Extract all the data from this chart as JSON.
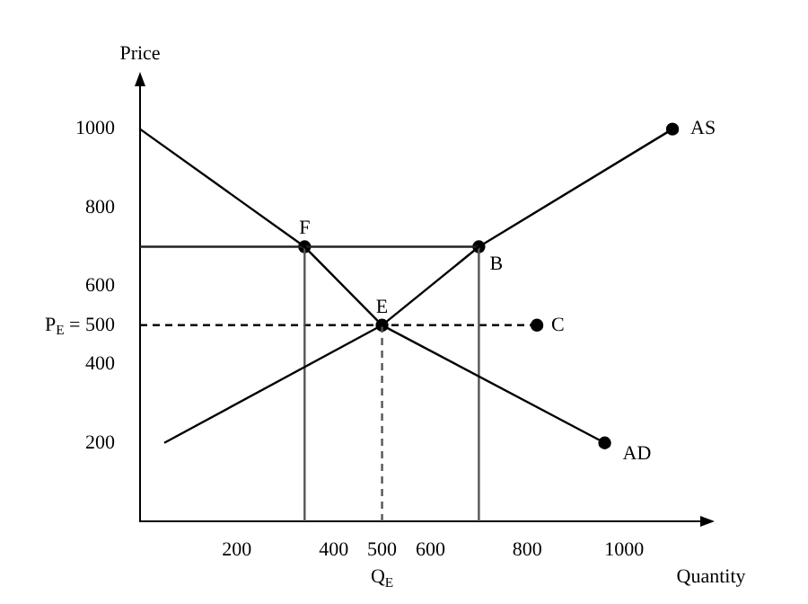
{
  "chart_data": {
    "type": "line",
    "xlabel": "Quantity",
    "ylabel": "Price",
    "xlim": [
      0,
      1150
    ],
    "ylim": [
      0,
      1100
    ],
    "xticks": [
      200,
      400,
      {
        "value": 500,
        "label": "500\nQ$_{E}$"
      },
      600,
      800,
      1000
    ],
    "yticks": [
      200,
      400,
      {
        "value": 500,
        "label": "P$_{E}$ = 500"
      },
      600,
      800,
      1000
    ],
    "grid": false,
    "legend": false,
    "series": [
      {
        "name": "AD",
        "color": "#000000",
        "x": [
          0,
          340,
          500,
          960
        ],
        "values": [
          1000,
          700,
          500,
          200
        ],
        "marker": "none"
      },
      {
        "name": "AS",
        "color": "#000000",
        "x": [
          50,
          500,
          700,
          1100
        ],
        "values": [
          200,
          500,
          700,
          1000
        ],
        "marker": "none"
      },
      {
        "color": "#222222",
        "x": [
          0,
          700
        ],
        "values": [
          700,
          700
        ],
        "marker": "none"
      },
      {
        "color": "#555555",
        "x": [
          340,
          340
        ],
        "values": [
          0,
          700
        ],
        "marker": "none"
      },
      {
        "color": "#555555",
        "x": [
          700,
          700
        ],
        "values": [
          0,
          700
        ],
        "marker": "none"
      },
      {
        "color": "#000000",
        "x": [
          0,
          820
        ],
        "values": [
          500,
          500
        ],
        "marker": "none",
        "line_style": "dashed"
      },
      {
        "color": "#555555",
        "x": [
          500,
          500
        ],
        "values": [
          0,
          500
        ],
        "marker": "none",
        "line_style": "dashed"
      },
      {
        "type": "scatter",
        "color": "#000000",
        "x": [
          340,
          500,
          700,
          820,
          1100,
          960
        ],
        "values": [
          700,
          500,
          700,
          500,
          1000,
          200
        ],
        "marker": "circle"
      }
    ],
    "annotations": [
      {
        "text": "F",
        "x": 340,
        "y": 700
      },
      {
        "text": "E",
        "x": 500,
        "y": 500
      },
      {
        "text": "B",
        "x": 700,
        "y": 700
      },
      {
        "text": "C",
        "x": 820,
        "y": 500
      }
    ]
  }
}
